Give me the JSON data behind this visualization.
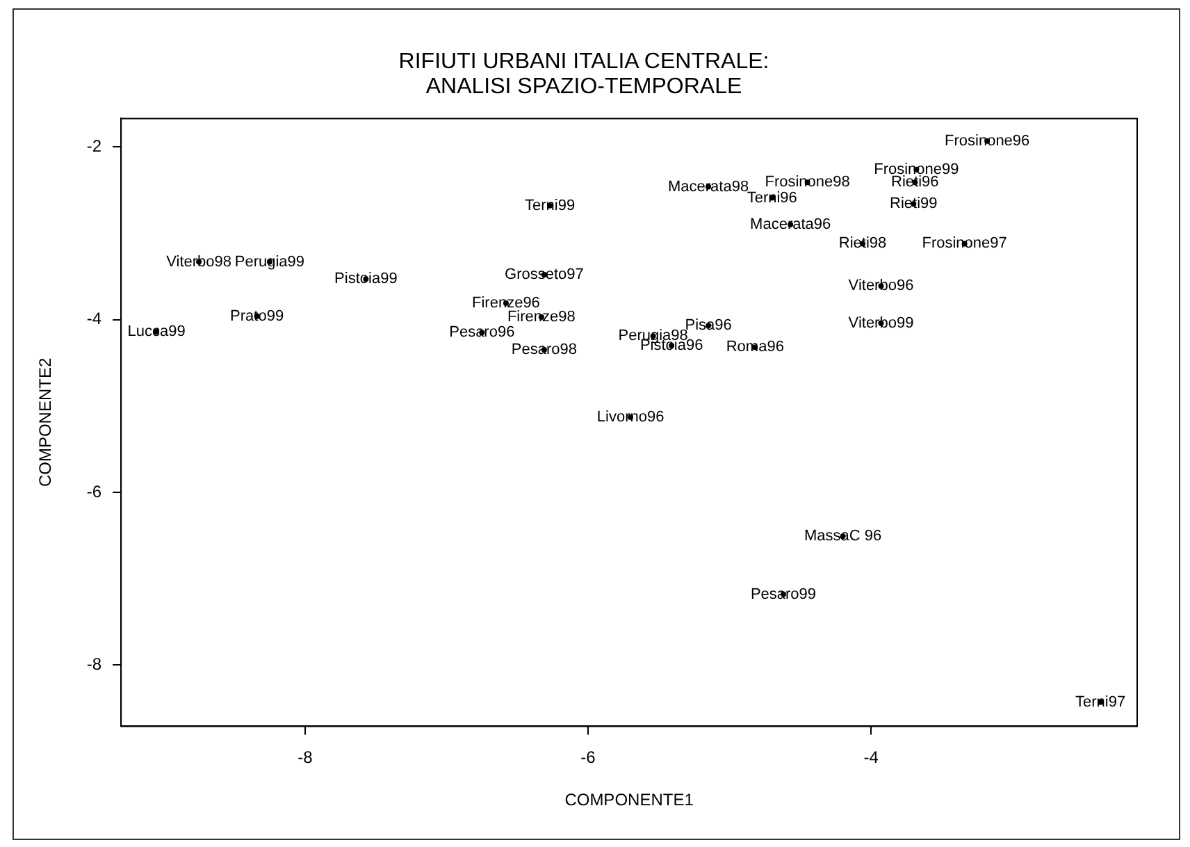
{
  "chart_data": {
    "type": "scatter",
    "title": "RIFIUTI URBANI ITALIA CENTRALE:\nANALISI SPAZIO-TEMPORALE",
    "xlabel": "COMPONENTE1",
    "ylabel": "COMPONENTE2",
    "xlim": [
      -9.3,
      -2.12
    ],
    "xticks": [
      -8,
      -6,
      -4
    ],
    "ylim": [
      -8.71,
      -1.67
    ],
    "yticks": [
      -2,
      -4,
      -6,
      -8
    ],
    "grid": false,
    "legend": false,
    "marker": "circle",
    "series": [
      {
        "color": "#000000",
        "x": [
          -3.18,
          -3.68,
          -3.69,
          -3.7,
          -4.45,
          -4.7,
          -4.06,
          -3.34,
          -3.93,
          -3.93,
          -4.57,
          -4.82,
          -5.15,
          -6.27,
          -6.31,
          -6.58,
          -6.33,
          -6.75,
          -6.31,
          -5.54,
          -5.15,
          -5.41,
          -9.05,
          -8.34,
          -8.75,
          -8.25,
          -7.57,
          -5.7,
          -4.2,
          -4.62,
          -2.38
        ],
        "values": [
          -1.93,
          -2.26,
          -2.41,
          -2.66,
          -2.41,
          -2.59,
          -3.12,
          -3.12,
          -3.61,
          -4.04,
          -2.9,
          -4.32,
          -2.46,
          -2.68,
          -3.48,
          -3.81,
          -3.97,
          -4.15,
          -4.35,
          -4.19,
          -4.07,
          -4.3,
          -4.14,
          -3.96,
          -3.33,
          -3.33,
          -3.53,
          -5.13,
          -6.51,
          -7.18,
          -8.43
        ],
        "value_labels": [
          "Frosinone96",
          "Frosinone99",
          "Rieti96",
          "Rieti99",
          "Frosinone98",
          "Terni96",
          "Rieti98",
          "Frosinone97",
          "Viterbo96",
          "Viterbo99",
          "Macerata96",
          "Roma96",
          "Macerata98",
          "Terni99",
          "Grosseto97",
          "Firenze96",
          "Firenze98",
          "Pesaro96",
          "Pesaro98",
          "Perugia98",
          "Pisa96",
          "Pistoia96",
          "Lucca99",
          "Prato99",
          "Viterbo98",
          "Perugia99",
          "Pistoia99",
          "Livorno96",
          "MassaC 96",
          "Pesaro99",
          "Terni97"
        ]
      }
    ]
  }
}
